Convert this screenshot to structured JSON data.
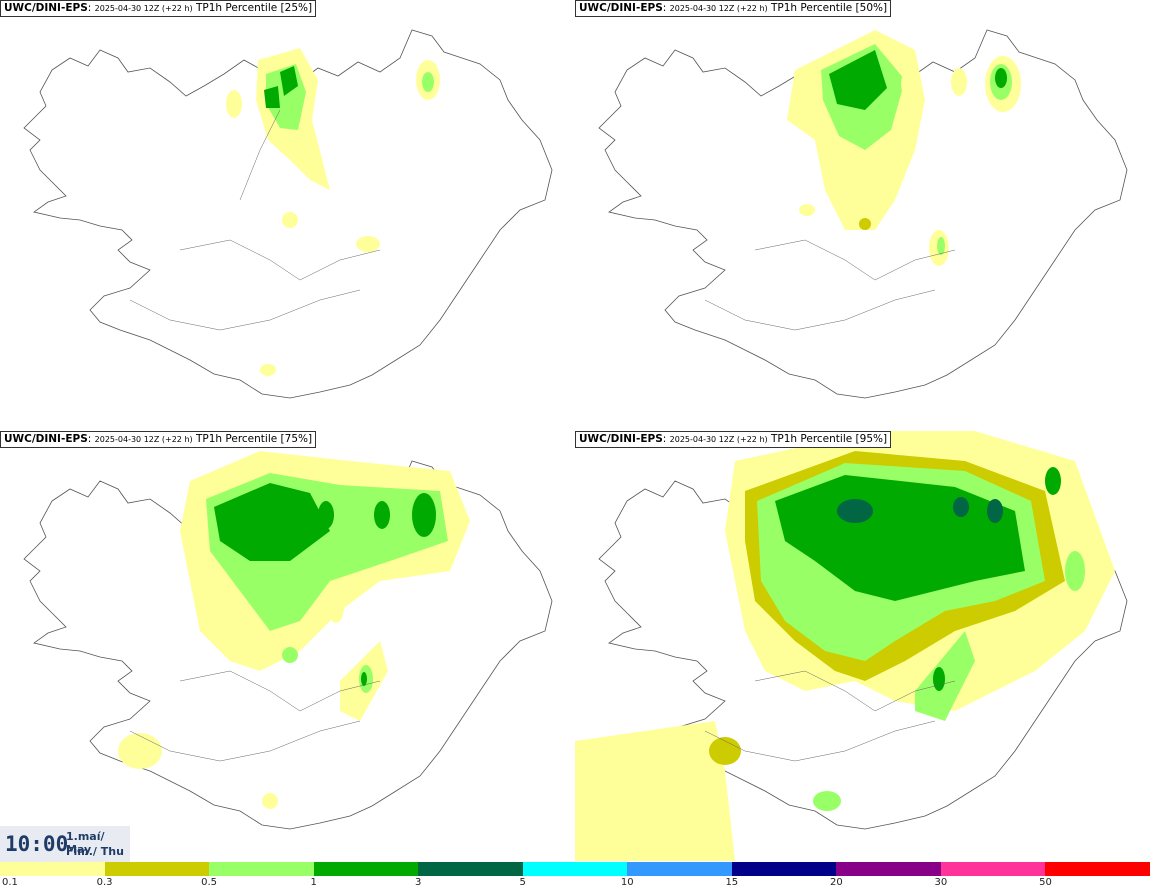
{
  "panels": [
    {
      "title_model": "UWC/DINI-EPS",
      "title_run": "2025-04-30 12Z (+22 h)",
      "title_field": "TP1h Percentile [25%]"
    },
    {
      "title_model": "UWC/DINI-EPS",
      "title_run": "2025-04-30 12Z (+22 h)",
      "title_field": "TP1h Percentile [50%]"
    },
    {
      "title_model": "UWC/DINI-EPS",
      "title_run": "2025-04-30 12Z (+22 h)",
      "title_field": "TP1h Percentile [75%]"
    },
    {
      "title_model": "UWC/DINI-EPS",
      "title_run": "2025-04-30 12Z (+22 h)",
      "title_field": "TP1h Percentile [95%]"
    }
  ],
  "time": {
    "hour": "10:00",
    "date_line": "1.maí/ May",
    "day_line": "Fim./ Thu"
  },
  "legend": {
    "colors": [
      "#ffff99",
      "#cccc00",
      "#99ff66",
      "#00aa00",
      "#006644",
      "#00ffff",
      "#3399ff",
      "#000088",
      "#880088",
      "#ff3399",
      "#ff0000"
    ],
    "labels": [
      "0.1",
      "0.3",
      "0.5",
      "1",
      "3",
      "5",
      "10",
      "15",
      "20",
      "30",
      "50"
    ]
  },
  "precip_colors": {
    "light": "#ffff99",
    "l2": "#cccc00",
    "l3": "#99ff66",
    "l4": "#00aa00",
    "l5": "#006644"
  }
}
